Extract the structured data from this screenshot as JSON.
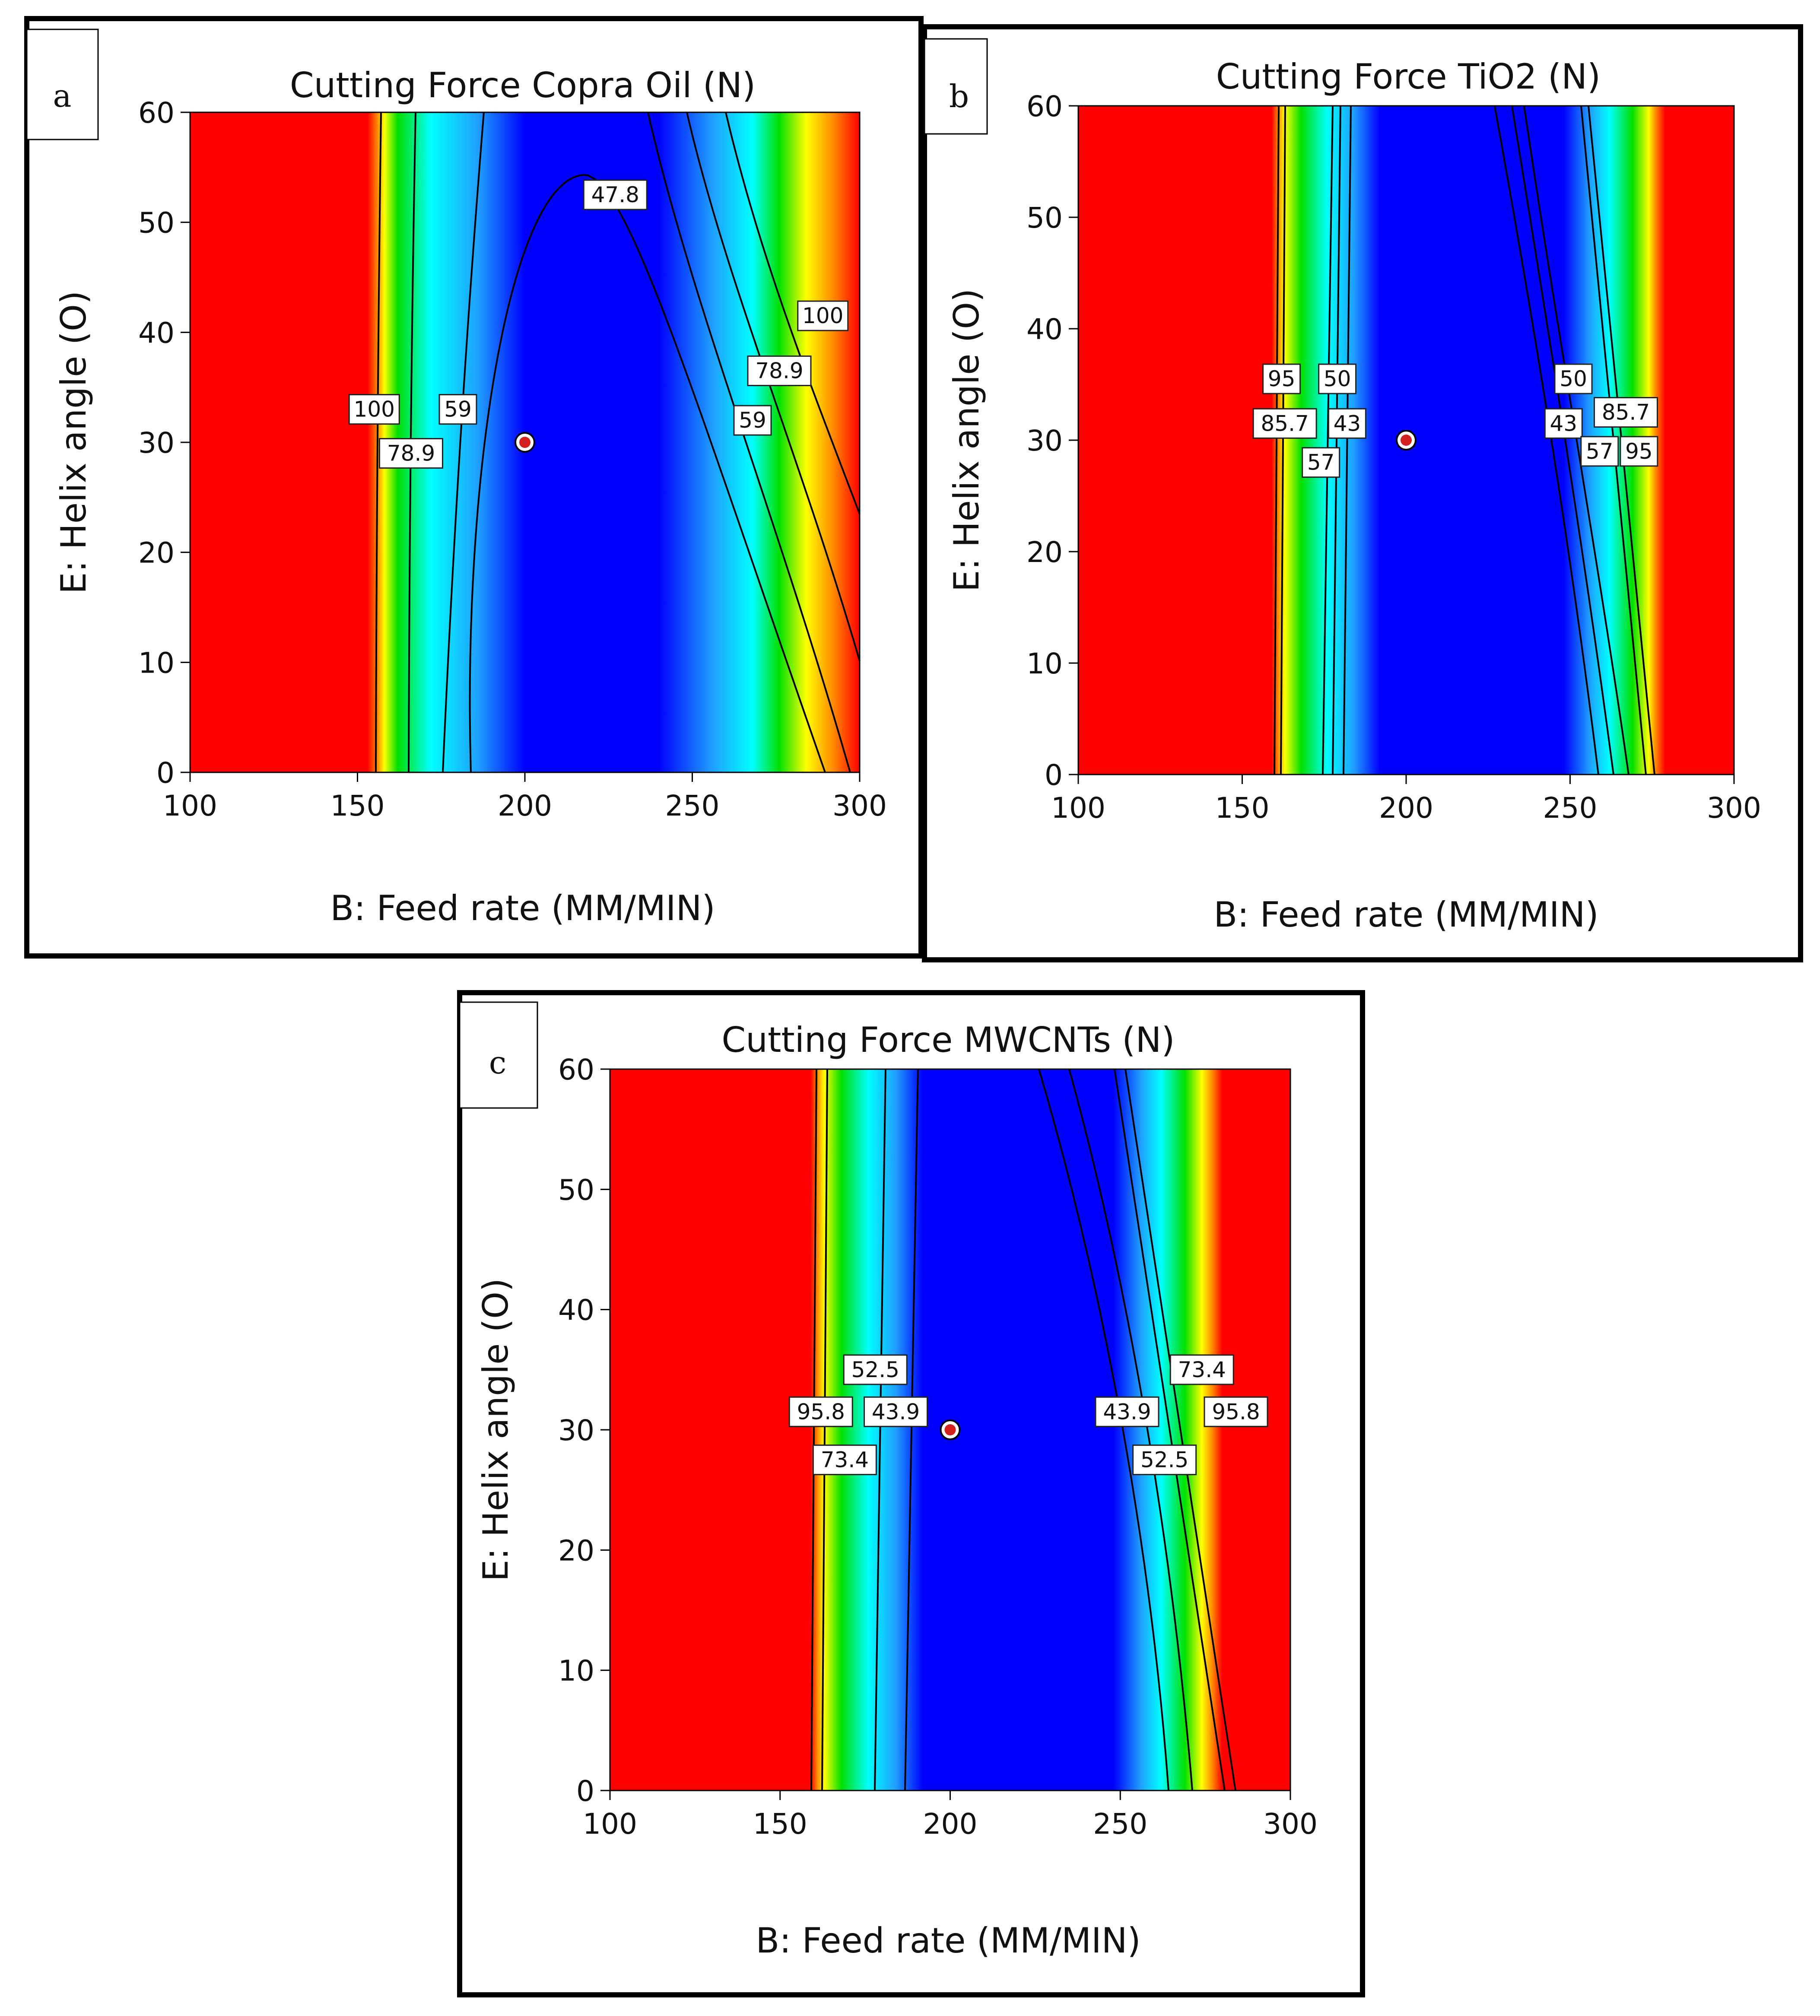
{
  "colors": {
    "red": "#ff0000",
    "orange": "#ff8c00",
    "yellow": "#ffff00",
    "green": "#00e000",
    "cyan": "#00ffff",
    "light_blue": "#1f9fff",
    "blue": "#0000ff",
    "center_marker": "#d32020"
  },
  "chart_data": [
    {
      "type": "heatmap",
      "panel_letter": "a",
      "title": "Cutting Force Copra Oil  (N)",
      "xlabel": "B: Feed rate (MM/MIN)",
      "ylabel": "E: Helix angle (O)",
      "xlim": [
        100,
        300
      ],
      "ylim": [
        0,
        60
      ],
      "xticks": [
        "100",
        "150",
        "200",
        "250",
        "300"
      ],
      "yticks": [
        "0",
        "10",
        "20",
        "30",
        "40",
        "50",
        "60"
      ],
      "design_center": {
        "x": 200,
        "y": 30
      },
      "contour_levels": [
        47.8,
        59,
        78.9,
        100
      ],
      "contour_labels": [
        {
          "text": "100",
          "x": 155,
          "y": 33
        },
        {
          "text": "78.9",
          "x": 166,
          "y": 29
        },
        {
          "text": "59",
          "x": 180,
          "y": 33
        },
        {
          "text": "47.8",
          "x": 227,
          "y": 52.5
        },
        {
          "text": "59",
          "x": 268,
          "y": 32
        },
        {
          "text": "78.9",
          "x": 276,
          "y": 36.5
        },
        {
          "text": "100",
          "x": 289,
          "y": 41.5
        }
      ]
    },
    {
      "type": "heatmap",
      "panel_letter": "b",
      "title": "Cutting Force TiO2  (N)",
      "xlabel": "B: Feed rate (MM/MIN)",
      "ylabel": "E: Helix angle (O)",
      "xlim": [
        100,
        300
      ],
      "ylim": [
        0,
        60
      ],
      "xticks": [
        "100",
        "150",
        "200",
        "250",
        "300"
      ],
      "yticks": [
        "0",
        "10",
        "20",
        "30",
        "40",
        "50",
        "60"
      ],
      "design_center": {
        "x": 200,
        "y": 30
      },
      "contour_levels": [
        43,
        50,
        57,
        85.7,
        95
      ],
      "contour_labels": [
        {
          "text": "95",
          "x": 162,
          "y": 35.5
        },
        {
          "text": "85.7",
          "x": 163,
          "y": 31.5
        },
        {
          "text": "50",
          "x": 179,
          "y": 35.5
        },
        {
          "text": "43",
          "x": 182,
          "y": 31.5
        },
        {
          "text": "57",
          "x": 174,
          "y": 28
        },
        {
          "text": "50",
          "x": 251,
          "y": 35.5
        },
        {
          "text": "43",
          "x": 248,
          "y": 31.5
        },
        {
          "text": "85.7",
          "x": 267,
          "y": 32.5
        },
        {
          "text": "57",
          "x": 259,
          "y": 29
        },
        {
          "text": "95",
          "x": 271,
          "y": 29
        }
      ]
    },
    {
      "type": "heatmap",
      "panel_letter": "c",
      "title": "Cutting Force MWCNTs  (N)",
      "xlabel": "B: Feed rate (MM/MIN)",
      "ylabel": "E: Helix angle (O)",
      "xlim": [
        100,
        300
      ],
      "ylim": [
        0,
        60
      ],
      "xticks": [
        "100",
        "150",
        "200",
        "250",
        "300"
      ],
      "yticks": [
        "0",
        "10",
        "20",
        "30",
        "40",
        "50",
        "60"
      ],
      "design_center": {
        "x": 200,
        "y": 30
      },
      "contour_levels": [
        43.9,
        52.5,
        73.4,
        95.8
      ],
      "contour_labels": [
        {
          "text": "52.5",
          "x": 178,
          "y": 35
        },
        {
          "text": "95.8",
          "x": 162,
          "y": 31.5
        },
        {
          "text": "43.9",
          "x": 184,
          "y": 31.5
        },
        {
          "text": "73.4",
          "x": 169,
          "y": 27.5
        },
        {
          "text": "43.9",
          "x": 252,
          "y": 31.5
        },
        {
          "text": "73.4",
          "x": 274,
          "y": 35
        },
        {
          "text": "95.8",
          "x": 284,
          "y": 31.5
        },
        {
          "text": "52.5",
          "x": 263,
          "y": 27.5
        }
      ]
    }
  ]
}
